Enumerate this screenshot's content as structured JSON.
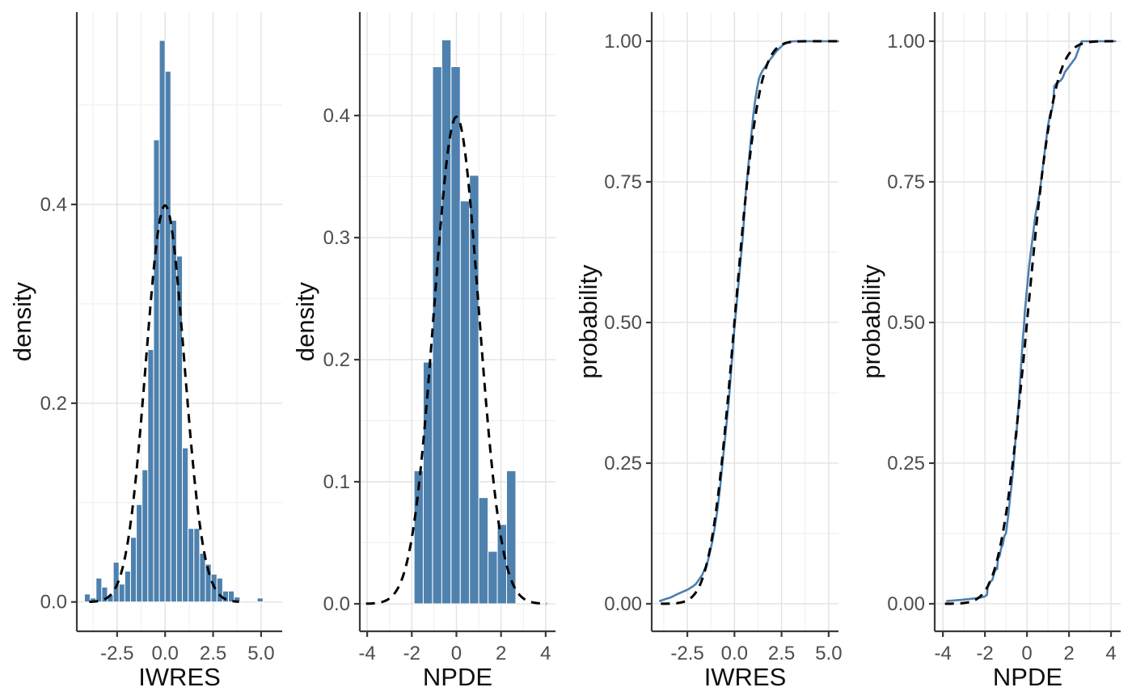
{
  "figure": {
    "background": "#ffffff",
    "panel_count": 4
  },
  "style": {
    "bar_fill": "#4e81ae",
    "bar_stroke": "#ffffff",
    "ecdf_line": "#4c80b2",
    "dashed_line": "#000000",
    "grid_major": "#e2e2e2",
    "grid_minor": "#efefef",
    "axis_line": "#3a3a3a",
    "tick_label_color": "#4d4d4d",
    "axis_title_color": "#0f0f0f"
  },
  "chart_data": {
    "type": "multi-panel",
    "panels": [
      {
        "id": "iwres-histogram",
        "type": "bar",
        "xlabel": "IWRES",
        "ylabel": "density",
        "x_range": [
          -4.6,
          6.1
        ],
        "y_range": [
          -0.0295,
          0.5935
        ],
        "x_ticks": [
          {
            "v": -2.5,
            "label": "-2.5"
          },
          {
            "v": 0,
            "label": "0.0"
          },
          {
            "v": 2.5,
            "label": "2.5"
          },
          {
            "v": 5,
            "label": "5.0"
          }
        ],
        "y_ticks": [
          {
            "v": 0,
            "label": "0.0"
          },
          {
            "v": 0.2,
            "label": "0.2"
          },
          {
            "v": 0.4,
            "label": "0.4"
          }
        ],
        "x_minor": [
          -3.75,
          -1.25,
          1.25,
          3.75
        ],
        "y_minor": [
          0.1,
          0.3,
          0.5
        ],
        "bin_width": 0.3,
        "bars": [
          [
            -4.05,
            0.008
          ],
          [
            -3.75,
            0.004
          ],
          [
            -3.45,
            0.024
          ],
          [
            -3.15,
            0.015
          ],
          [
            -2.85,
            0.007
          ],
          [
            -2.55,
            0.04
          ],
          [
            -2.25,
            0.018
          ],
          [
            -1.95,
            0.031
          ],
          [
            -1.65,
            0.065
          ],
          [
            -1.35,
            0.098
          ],
          [
            -1.05,
            0.133
          ],
          [
            -0.75,
            0.254
          ],
          [
            -0.45,
            0.465
          ],
          [
            -0.15,
            0.565
          ],
          [
            0.15,
            0.534
          ],
          [
            0.45,
            0.384
          ],
          [
            0.75,
            0.348
          ],
          [
            1.05,
            0.155
          ],
          [
            1.35,
            0.074
          ],
          [
            1.65,
            0.074
          ],
          [
            1.95,
            0.049
          ],
          [
            2.25,
            0.038
          ],
          [
            2.55,
            0.028
          ],
          [
            2.85,
            0.024
          ],
          [
            3.15,
            0.011
          ],
          [
            3.45,
            0.011
          ],
          [
            3.75,
            0.005
          ],
          [
            4.95,
            0.004
          ]
        ],
        "overlay": {
          "kind": "normal-pdf",
          "mean": 0,
          "sd": 1,
          "draw_range": [
            -3.95,
            3.85
          ]
        }
      },
      {
        "id": "npde-histogram",
        "type": "bar",
        "xlabel": "NPDE",
        "ylabel": "density",
        "x_range": [
          -4.33,
          4.44
        ],
        "y_range": [
          -0.0225,
          0.4847
        ],
        "x_ticks": [
          {
            "v": -4,
            "label": "-4"
          },
          {
            "v": -2,
            "label": "-2"
          },
          {
            "v": 0,
            "label": "0"
          },
          {
            "v": 2,
            "label": "2"
          },
          {
            "v": 4,
            "label": "4"
          }
        ],
        "y_ticks": [
          {
            "v": 0,
            "label": "0.0"
          },
          {
            "v": 0.1,
            "label": "0.1"
          },
          {
            "v": 0.2,
            "label": "0.2"
          },
          {
            "v": 0.3,
            "label": "0.3"
          },
          {
            "v": 0.4,
            "label": "0.4"
          }
        ],
        "x_minor": [
          -3,
          -1,
          1,
          3
        ],
        "y_minor": [
          0.05,
          0.15,
          0.25,
          0.35,
          0.45
        ],
        "bin_width": 0.415,
        "bars": [
          [
            -1.69,
            0.109
          ],
          [
            -1.28,
            0.198
          ],
          [
            -0.86,
            0.44
          ],
          [
            -0.45,
            0.462
          ],
          [
            -0.035,
            0.44
          ],
          [
            0.38,
            0.33
          ],
          [
            0.795,
            0.351
          ],
          [
            1.21,
            0.087
          ],
          [
            1.625,
            0.043
          ],
          [
            2.04,
            0.065
          ],
          [
            2.455,
            0.109
          ]
        ],
        "overlay": {
          "kind": "normal-pdf",
          "mean": 0,
          "sd": 1,
          "draw_range": [
            -4.05,
            4.05
          ]
        }
      },
      {
        "id": "iwres-cdf",
        "type": "line",
        "xlabel": "IWRES",
        "ylabel": "probability",
        "x_range": [
          -4.39,
          5.52
        ],
        "y_range": [
          -0.0489,
          1.0517
        ],
        "x_ticks": [
          {
            "v": -2.5,
            "label": "-2.5"
          },
          {
            "v": 0,
            "label": "0.0"
          },
          {
            "v": 2.5,
            "label": "2.5"
          },
          {
            "v": 5,
            "label": "5.0"
          }
        ],
        "y_ticks": [
          {
            "v": 0,
            "label": "0.00"
          },
          {
            "v": 0.25,
            "label": "0.25"
          },
          {
            "v": 0.5,
            "label": "0.50"
          },
          {
            "v": 0.75,
            "label": "0.75"
          },
          {
            "v": 1,
            "label": "1.00"
          }
        ],
        "x_minor": [
          -3.75,
          -1.25,
          1.25,
          3.75
        ],
        "y_minor": [
          0.125,
          0.375,
          0.625,
          0.875
        ],
        "ecdf_points": [
          [
            -3.95,
            0.005
          ],
          [
            -3.7,
            0.008
          ],
          [
            -3.4,
            0.011
          ],
          [
            -3.1,
            0.016
          ],
          [
            -2.9,
            0.019
          ],
          [
            -2.7,
            0.022
          ],
          [
            -2.5,
            0.025
          ],
          [
            -2.35,
            0.028
          ],
          [
            -2.2,
            0.031
          ],
          [
            -2.05,
            0.035
          ],
          [
            -1.9,
            0.042
          ],
          [
            -1.8,
            0.047
          ],
          [
            -1.7,
            0.052
          ],
          [
            -1.6,
            0.06
          ],
          [
            -1.5,
            0.068
          ],
          [
            -1.4,
            0.077
          ],
          [
            -1.35,
            0.085
          ],
          [
            -1.2,
            0.107
          ],
          [
            -1.05,
            0.135
          ],
          [
            -0.9,
            0.168
          ],
          [
            -0.75,
            0.21
          ],
          [
            -0.6,
            0.26
          ],
          [
            -0.45,
            0.31
          ],
          [
            -0.3,
            0.36
          ],
          [
            -0.15,
            0.425
          ],
          [
            0.0,
            0.49
          ],
          [
            0.15,
            0.545
          ],
          [
            0.3,
            0.6
          ],
          [
            0.45,
            0.655
          ],
          [
            0.6,
            0.73
          ],
          [
            0.7,
            0.765
          ],
          [
            0.8,
            0.8
          ],
          [
            0.9,
            0.835
          ],
          [
            1.0,
            0.868
          ],
          [
            1.1,
            0.895
          ],
          [
            1.2,
            0.916
          ],
          [
            1.3,
            0.933
          ],
          [
            1.4,
            0.942
          ],
          [
            1.5,
            0.948
          ],
          [
            1.6,
            0.953
          ],
          [
            1.7,
            0.958
          ],
          [
            1.8,
            0.963
          ],
          [
            1.9,
            0.968
          ],
          [
            2.0,
            0.972
          ],
          [
            2.2,
            0.981
          ],
          [
            2.4,
            0.988
          ],
          [
            2.6,
            0.994
          ],
          [
            2.8,
            0.998
          ],
          [
            3.0,
            0.9995
          ],
          [
            3.2,
            1.0
          ],
          [
            5.5,
            1.0
          ]
        ],
        "overlay": {
          "kind": "normal-cdf",
          "mean": 0,
          "sd": 1,
          "draw_range": [
            -3.9,
            5.45
          ]
        }
      },
      {
        "id": "npde-cdf",
        "type": "line",
        "xlabel": "NPDE",
        "ylabel": "probability",
        "x_range": [
          -4.39,
          4.46
        ],
        "y_range": [
          -0.0489,
          1.0517
        ],
        "x_ticks": [
          {
            "v": -4,
            "label": "-4"
          },
          {
            "v": -2,
            "label": "-2"
          },
          {
            "v": 0,
            "label": "0"
          },
          {
            "v": 2,
            "label": "2"
          },
          {
            "v": 4,
            "label": "4"
          }
        ],
        "y_ticks": [
          {
            "v": 0,
            "label": "0.00"
          },
          {
            "v": 0.25,
            "label": "0.25"
          },
          {
            "v": 0.5,
            "label": "0.50"
          },
          {
            "v": 0.75,
            "label": "0.75"
          },
          {
            "v": 1,
            "label": "1.00"
          }
        ],
        "x_minor": [
          -3,
          -1,
          1,
          3
        ],
        "y_minor": [
          0.125,
          0.375,
          0.625,
          0.875
        ],
        "ecdf_points": [
          [
            -3.8,
            0.005
          ],
          [
            -3.1,
            0.007
          ],
          [
            -2.6,
            0.009
          ],
          [
            -2.2,
            0.011
          ],
          [
            -2.0,
            0.013
          ],
          [
            -1.9,
            0.016
          ],
          [
            -1.87,
            0.03
          ],
          [
            -1.8,
            0.038
          ],
          [
            -1.65,
            0.042
          ],
          [
            -1.55,
            0.055
          ],
          [
            -1.5,
            0.06
          ],
          [
            -1.42,
            0.062
          ],
          [
            -1.38,
            0.08
          ],
          [
            -1.3,
            0.085
          ],
          [
            -1.22,
            0.1
          ],
          [
            -1.15,
            0.105
          ],
          [
            -1.08,
            0.12
          ],
          [
            -1.0,
            0.125
          ],
          [
            -0.95,
            0.14
          ],
          [
            -0.88,
            0.16
          ],
          [
            -0.8,
            0.19
          ],
          [
            -0.72,
            0.215
          ],
          [
            -0.65,
            0.24
          ],
          [
            -0.6,
            0.265
          ],
          [
            -0.55,
            0.29
          ],
          [
            -0.5,
            0.3
          ],
          [
            -0.45,
            0.33
          ],
          [
            -0.4,
            0.35
          ],
          [
            -0.35,
            0.38
          ],
          [
            -0.3,
            0.41
          ],
          [
            -0.25,
            0.44
          ],
          [
            -0.2,
            0.47
          ],
          [
            -0.15,
            0.49
          ],
          [
            -0.1,
            0.52
          ],
          [
            -0.05,
            0.54
          ],
          [
            0.0,
            0.56
          ],
          [
            0.1,
            0.6
          ],
          [
            0.2,
            0.63
          ],
          [
            0.3,
            0.66
          ],
          [
            0.4,
            0.69
          ],
          [
            0.5,
            0.71
          ],
          [
            0.6,
            0.73
          ],
          [
            0.7,
            0.76
          ],
          [
            0.8,
            0.79
          ],
          [
            0.9,
            0.82
          ],
          [
            1.0,
            0.85
          ],
          [
            1.1,
            0.87
          ],
          [
            1.2,
            0.88
          ],
          [
            1.25,
            0.89
          ],
          [
            1.3,
            0.92
          ],
          [
            1.4,
            0.925
          ],
          [
            1.6,
            0.93
          ],
          [
            1.7,
            0.935
          ],
          [
            1.8,
            0.945
          ],
          [
            1.9,
            0.95
          ],
          [
            2.0,
            0.955
          ],
          [
            2.1,
            0.96
          ],
          [
            2.2,
            0.965
          ],
          [
            2.3,
            0.97
          ],
          [
            2.35,
            0.975
          ],
          [
            2.4,
            0.98
          ],
          [
            2.45,
            0.985
          ],
          [
            2.5,
            0.99
          ],
          [
            2.55,
            0.995
          ],
          [
            2.6,
            1.0
          ],
          [
            4.2,
            1.0
          ]
        ],
        "overlay": {
          "kind": "normal-cdf",
          "mean": 0,
          "sd": 1,
          "draw_range": [
            -3.9,
            4.4
          ]
        }
      }
    ]
  }
}
